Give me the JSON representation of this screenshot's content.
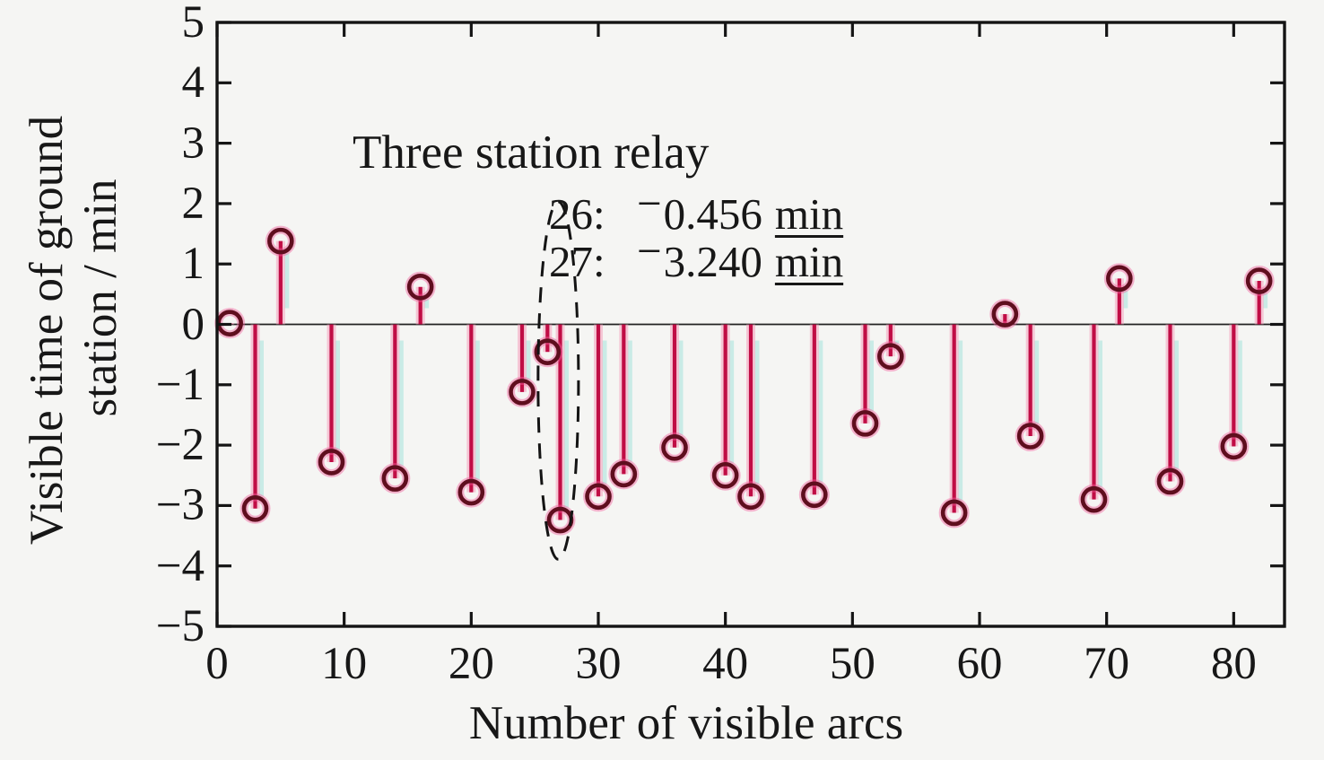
{
  "figure": {
    "background": "#f5f5f3",
    "axis_color": "#141414",
    "text_color": "#171717"
  },
  "chart_data": {
    "type": "stem",
    "xlabel": "Number of visible arcs",
    "ylabel_line1": "Visible time of ground",
    "ylabel_line2": "station / min",
    "xlim": [
      0,
      84
    ],
    "ylim": [
      -5,
      5
    ],
    "x_ticks": [
      0,
      10,
      20,
      30,
      40,
      50,
      60,
      70,
      80
    ],
    "y_ticks": [
      -5,
      -4,
      -3,
      -2,
      -1,
      0,
      1,
      2,
      3,
      4,
      5
    ],
    "grid": "off",
    "stem_color": "#c00d45",
    "stem_glow_color": "#f6a0be",
    "marker_edge_color": "#5f0e1e",
    "marker_glow_color": "#f05f9b",
    "x": [
      1,
      3,
      5,
      9,
      14,
      16,
      20,
      24,
      26,
      27,
      30,
      32,
      36,
      40,
      42,
      47,
      51,
      53,
      58,
      62,
      64,
      69,
      71,
      75,
      80,
      82
    ],
    "values": [
      0.02,
      -3.05,
      1.38,
      -2.28,
      -2.55,
      0.62,
      -2.78,
      -1.12,
      -0.456,
      -3.24,
      -2.85,
      -2.48,
      -2.04,
      -2.5,
      -2.85,
      -2.82,
      -1.64,
      -0.53,
      -3.12,
      0.17,
      -1.85,
      -2.9,
      0.76,
      -2.6,
      -2.02,
      0.72
    ],
    "annotation": {
      "title": "Three station relay",
      "lines": [
        {
          "index": "26:",
          "sign": "−",
          "magnitude": "0.456",
          "unit": "min"
        },
        {
          "index": "27:",
          "sign": "−",
          "magnitude": "3.240",
          "unit": "min"
        }
      ],
      "ellipse": {
        "cx": 26.85,
        "cy": -0.93,
        "rx": 1.59,
        "ry": 2.96
      }
    }
  }
}
